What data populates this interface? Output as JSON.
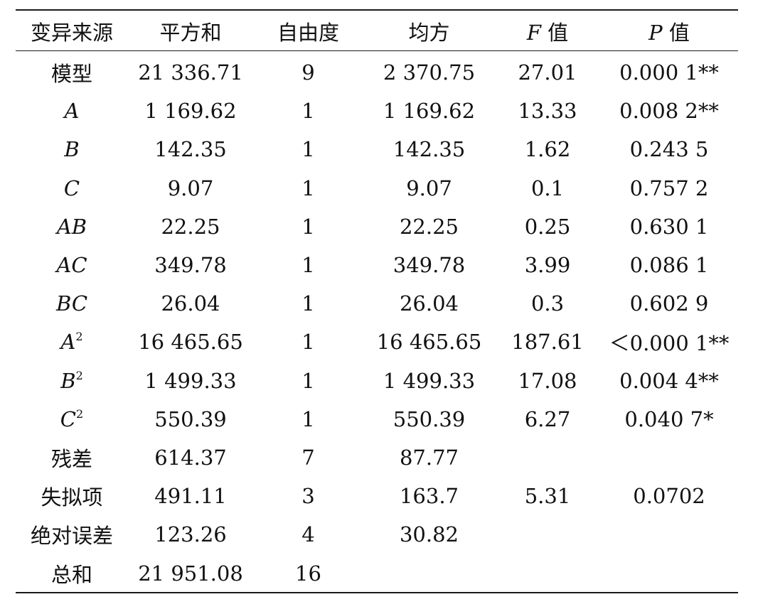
{
  "table": {
    "headers": [
      {
        "main": "变异来源",
        "italic": ""
      },
      {
        "main": "平方和",
        "italic": ""
      },
      {
        "main": "自由度",
        "italic": ""
      },
      {
        "main": "均方",
        "italic": ""
      },
      {
        "main": "值",
        "italic": "F"
      },
      {
        "main": "值",
        "italic": "P"
      }
    ],
    "rows": [
      {
        "source": "模型",
        "source_italic": false,
        "sup": "",
        "ss": "21 336.71",
        "df": "9",
        "ms": "2 370.75",
        "f": "27.01",
        "p": "0.000 1**"
      },
      {
        "source": "A",
        "source_italic": true,
        "sup": "",
        "ss": "1 169.62",
        "df": "1",
        "ms": "1 169.62",
        "f": "13.33",
        "p": "0.008 2**"
      },
      {
        "source": "B",
        "source_italic": true,
        "sup": "",
        "ss": "142.35",
        "df": "1",
        "ms": "142.35",
        "f": "1.62",
        "p": "0.243 5"
      },
      {
        "source": "C",
        "source_italic": true,
        "sup": "",
        "ss": "9.07",
        "df": "1",
        "ms": "9.07",
        "f": "0.1",
        "p": "0.757 2"
      },
      {
        "source": "AB",
        "source_italic": true,
        "sup": "",
        "ss": "22.25",
        "df": "1",
        "ms": "22.25",
        "f": "0.25",
        "p": "0.630 1"
      },
      {
        "source": "AC",
        "source_italic": true,
        "sup": "",
        "ss": "349.78",
        "df": "1",
        "ms": "349.78",
        "f": "3.99",
        "p": "0.086 1"
      },
      {
        "source": "BC",
        "source_italic": true,
        "sup": "",
        "ss": "26.04",
        "df": "1",
        "ms": "26.04",
        "f": "0.3",
        "p": "0.602 9"
      },
      {
        "source": "A",
        "source_italic": true,
        "sup": "2",
        "ss": "16 465.65",
        "df": "1",
        "ms": "16 465.65",
        "f": "187.61",
        "p": "＜0.000 1**"
      },
      {
        "source": "B",
        "source_italic": true,
        "sup": "2",
        "ss": "1 499.33",
        "df": "1",
        "ms": "1 499.33",
        "f": "17.08",
        "p": "0.004 4**"
      },
      {
        "source": "C",
        "source_italic": true,
        "sup": "2",
        "ss": "550.39",
        "df": "1",
        "ms": "550.39",
        "f": "6.27",
        "p": "0.040 7*"
      },
      {
        "source": "残差",
        "source_italic": false,
        "sup": "",
        "ss": "614.37",
        "df": "7",
        "ms": "87.77",
        "f": "",
        "p": ""
      },
      {
        "source": "失拟项",
        "source_italic": false,
        "sup": "",
        "ss": "491.11",
        "df": "3",
        "ms": "163.7",
        "f": "5.31",
        "p": "0.0702"
      },
      {
        "source": "绝对误差",
        "source_italic": false,
        "sup": "",
        "ss": "123.26",
        "df": "4",
        "ms": "30.82",
        "f": "",
        "p": ""
      },
      {
        "source": "总和",
        "source_italic": false,
        "sup": "",
        "ss": "21 951.08",
        "df": "16",
        "ms": "",
        "f": "",
        "p": ""
      }
    ]
  }
}
